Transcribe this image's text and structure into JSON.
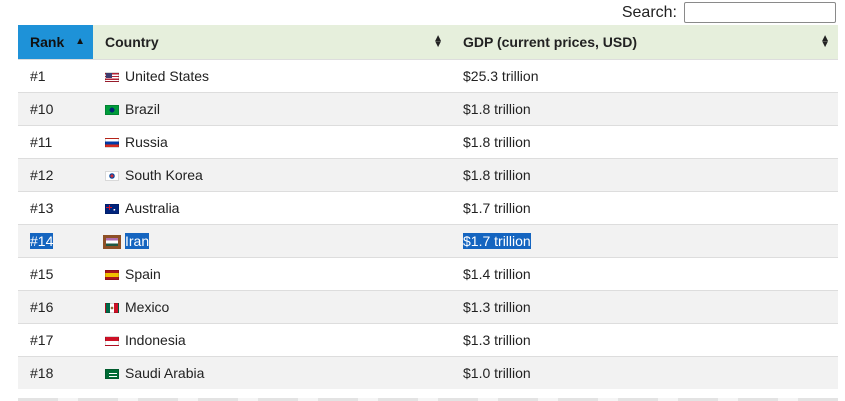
{
  "search": {
    "label": "Search:",
    "value": ""
  },
  "table": {
    "columns": [
      {
        "label": "Rank",
        "sort": "ascending"
      },
      {
        "label": "Country",
        "sort": "none"
      },
      {
        "label": "GDP (current prices, USD)",
        "sort": "none"
      }
    ],
    "rows": [
      {
        "rank": "#1",
        "country": "United States",
        "gdp": "$25.3 trillion",
        "flag": "us-flag-icon"
      },
      {
        "rank": "#10",
        "country": "Brazil",
        "gdp": "$1.8 trillion",
        "flag": "brazil-flag-icon"
      },
      {
        "rank": "#11",
        "country": "Russia",
        "gdp": "$1.8 trillion",
        "flag": "russia-flag-icon"
      },
      {
        "rank": "#12",
        "country": "South Korea",
        "gdp": "$1.8 trillion",
        "flag": "south-korea-flag-icon"
      },
      {
        "rank": "#13",
        "country": "Australia",
        "gdp": "$1.7 trillion",
        "flag": "australia-flag-icon"
      },
      {
        "rank": "#14",
        "country": "Iran",
        "gdp": "$1.7 trillion",
        "flag": "iran-flag-icon",
        "text_selected": true
      },
      {
        "rank": "#15",
        "country": "Spain",
        "gdp": "$1.4 trillion",
        "flag": "spain-flag-icon"
      },
      {
        "rank": "#16",
        "country": "Mexico",
        "gdp": "$1.3 trillion",
        "flag": "mexico-flag-icon"
      },
      {
        "rank": "#17",
        "country": "Indonesia",
        "gdp": "$1.3 trillion",
        "flag": "indonesia-flag-icon"
      },
      {
        "rank": "#18",
        "country": "Saudi Arabia",
        "gdp": "$1.0 trillion",
        "flag": "saudi-arabia-flag-icon"
      }
    ]
  },
  "colors": {
    "header_bg": "#e6efdc",
    "sorted_header_bg": "#1e92d8",
    "selection": "#1565c0",
    "stripe": "#f2f2f2"
  }
}
